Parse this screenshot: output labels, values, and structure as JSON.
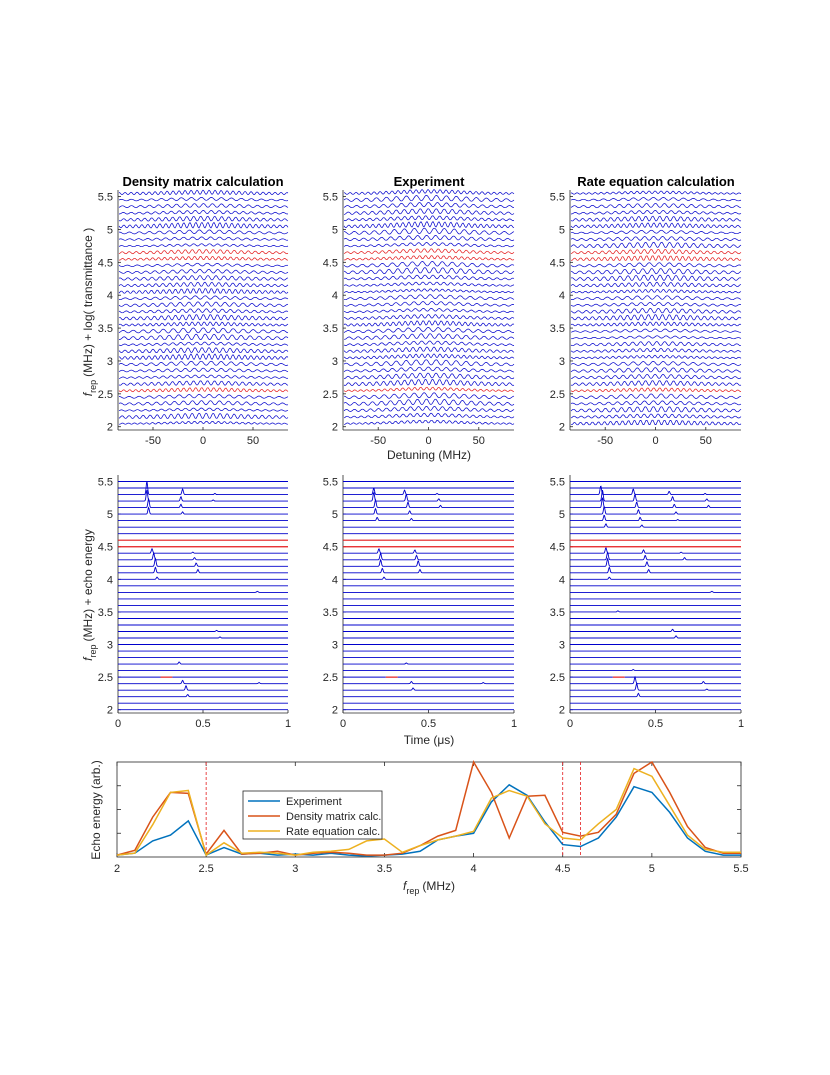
{
  "chart_data": [
    {
      "type": "line",
      "id": "density-spectra",
      "title": "Density matrix calculation",
      "xlabel": "",
      "ylabel_var": "f",
      "ylabel_sub": "rep",
      "ylabel_rest": "(MHz) + log( transmittance )",
      "xlim": [
        -85,
        85
      ],
      "ylim": [
        1.95,
        5.6
      ],
      "xticks": [
        -50,
        0,
        50
      ],
      "xtick_labels": [
        "-50",
        "0",
        "50"
      ],
      "yticks": [
        2,
        2.5,
        3,
        3.5,
        4,
        4.5,
        5,
        5.5
      ],
      "ytick_labels": [
        "2",
        "2.5",
        "3",
        "3.5",
        "4",
        "4.5",
        "5",
        "5.5"
      ],
      "frep_start": 2.0,
      "frep_step": 0.1,
      "n_traces": 36,
      "highlight_frep": [
        2.5,
        4.5,
        4.6
      ],
      "trace_color": "#0000cc",
      "highlight_color": "#e41a1c"
    },
    {
      "type": "line",
      "id": "experiment-spectra",
      "title": "Experiment",
      "xlabel": "Detuning (MHz)",
      "xlim": [
        -85,
        85
      ],
      "ylim": [
        1.95,
        5.6
      ],
      "xticks": [
        -50,
        0,
        50
      ],
      "xtick_labels": [
        "-50",
        "0",
        "50"
      ],
      "yticks": [
        2,
        2.5,
        3,
        3.5,
        4,
        4.5,
        5,
        5.5
      ],
      "ytick_labels": [
        "2",
        "2.5",
        "3",
        "3.5",
        "4",
        "4.5",
        "5",
        "5.5"
      ],
      "frep_start": 2.0,
      "frep_step": 0.1,
      "n_traces": 36,
      "highlight_frep": [
        2.5,
        4.5,
        4.6
      ],
      "trace_color": "#0000cc",
      "highlight_color": "#e41a1c"
    },
    {
      "type": "line",
      "id": "rate-spectra",
      "title": "Rate equation calculation",
      "xlabel": "",
      "xlim": [
        -85,
        85
      ],
      "ylim": [
        1.95,
        5.6
      ],
      "xticks": [
        -50,
        0,
        50
      ],
      "xtick_labels": [
        "-50",
        "0",
        "50"
      ],
      "yticks": [
        2,
        2.5,
        3,
        3.5,
        4,
        4.5,
        5,
        5.5
      ],
      "ytick_labels": [
        "2",
        "2.5",
        "3",
        "3.5",
        "4",
        "4.5",
        "5",
        "5.5"
      ],
      "frep_start": 2.0,
      "frep_step": 0.1,
      "n_traces": 36,
      "highlight_frep": [
        2.5,
        4.5,
        4.6
      ],
      "trace_color": "#0000cc",
      "highlight_color": "#e41a1c"
    },
    {
      "type": "line",
      "id": "density-echo",
      "xlabel": "",
      "ylabel_var": "f",
      "ylabel_sub": "rep",
      "ylabel_rest": "(MHz) + echo energy",
      "xlim": [
        0,
        1
      ],
      "ylim": [
        1.95,
        5.6
      ],
      "xticks": [
        0,
        0.5,
        1
      ],
      "xtick_labels": [
        "0",
        "0.5",
        "1"
      ],
      "yticks": [
        2,
        2.5,
        3,
        3.5,
        4,
        4.5,
        5,
        5.5
      ],
      "ytick_labels": [
        "2",
        "2.5",
        "3",
        "3.5",
        "4",
        "4.5",
        "5",
        "5.5"
      ],
      "frep_start": 2.0,
      "frep_step": 0.1,
      "n_traces": 36,
      "highlight_frep": [
        2.5,
        4.5,
        4.6
      ],
      "echo_peaks": [
        {
          "frep": 5.3,
          "times": [
            0.17,
            0.38,
            0.57
          ],
          "amps": [
            0.12,
            0.05,
            0.01
          ]
        },
        {
          "frep": 5.2,
          "times": [
            0.17,
            0.37,
            0.56
          ],
          "amps": [
            0.1,
            0.04,
            0.01
          ]
        },
        {
          "frep": 5.1,
          "times": [
            0.18,
            0.37
          ],
          "amps": [
            0.08,
            0.03
          ]
        },
        {
          "frep": 5.0,
          "times": [
            0.18,
            0.38
          ],
          "amps": [
            0.06,
            0.02
          ]
        },
        {
          "frep": 4.4,
          "times": [
            0.2,
            0.44
          ],
          "amps": [
            0.04,
            0.01
          ]
        },
        {
          "frep": 4.3,
          "times": [
            0.21,
            0.45
          ],
          "amps": [
            0.06,
            0.02
          ]
        },
        {
          "frep": 4.2,
          "times": [
            0.22,
            0.46
          ],
          "amps": [
            0.07,
            0.03
          ]
        },
        {
          "frep": 4.1,
          "times": [
            0.22,
            0.47
          ],
          "amps": [
            0.05,
            0.03
          ]
        },
        {
          "frep": 4.0,
          "times": [
            0.23
          ],
          "amps": [
            0.02
          ]
        },
        {
          "frep": 3.8,
          "times": [
            0.82
          ],
          "amps": [
            0.01
          ]
        },
        {
          "frep": 3.2,
          "times": [
            0.58
          ],
          "amps": [
            0.01
          ]
        },
        {
          "frep": 3.1,
          "times": [
            0.6
          ],
          "amps": [
            0.01
          ]
        },
        {
          "frep": 2.7,
          "times": [
            0.36
          ],
          "amps": [
            0.02
          ]
        },
        {
          "frep": 2.4,
          "times": [
            0.38,
            0.83
          ],
          "amps": [
            0.03,
            0.01
          ]
        },
        {
          "frep": 2.3,
          "times": [
            0.4
          ],
          "amps": [
            0.04
          ]
        },
        {
          "frep": 2.2,
          "times": [
            0.41
          ],
          "amps": [
            0.02
          ]
        }
      ]
    },
    {
      "type": "line",
      "id": "experiment-echo",
      "xlabel": "Time (μs)",
      "xlim": [
        0,
        1
      ],
      "ylim": [
        1.95,
        5.6
      ],
      "xticks": [
        0,
        0.5,
        1
      ],
      "xtick_labels": [
        "0",
        "0.5",
        "1"
      ],
      "yticks": [
        2,
        2.5,
        3,
        3.5,
        4,
        4.5,
        5,
        5.5
      ],
      "ytick_labels": [
        "2",
        "2.5",
        "3",
        "3.5",
        "4",
        "4.5",
        "5",
        "5.5"
      ],
      "frep_start": 2.0,
      "frep_step": 0.1,
      "n_traces": 36,
      "highlight_frep": [
        2.5,
        4.5,
        4.6
      ],
      "echo_peaks": [
        {
          "frep": 5.3,
          "times": [
            0.18,
            0.36,
            0.55
          ],
          "amps": [
            0.06,
            0.04,
            0.01
          ]
        },
        {
          "frep": 5.2,
          "times": [
            0.18,
            0.37,
            0.56
          ],
          "amps": [
            0.08,
            0.06,
            0.02
          ]
        },
        {
          "frep": 5.1,
          "times": [
            0.19,
            0.38,
            0.57
          ],
          "amps": [
            0.07,
            0.05,
            0.02
          ]
        },
        {
          "frep": 5.0,
          "times": [
            0.19,
            0.39
          ],
          "amps": [
            0.05,
            0.03
          ]
        },
        {
          "frep": 4.9,
          "times": [
            0.2,
            0.4
          ],
          "amps": [
            0.03,
            0.02
          ]
        },
        {
          "frep": 4.4,
          "times": [
            0.21,
            0.42
          ],
          "amps": [
            0.04,
            0.03
          ]
        },
        {
          "frep": 4.3,
          "times": [
            0.22,
            0.43
          ],
          "amps": [
            0.06,
            0.04
          ]
        },
        {
          "frep": 4.2,
          "times": [
            0.22,
            0.44
          ],
          "amps": [
            0.06,
            0.05
          ]
        },
        {
          "frep": 4.1,
          "times": [
            0.23,
            0.45
          ],
          "amps": [
            0.04,
            0.03
          ]
        },
        {
          "frep": 4.0,
          "times": [
            0.24
          ],
          "amps": [
            0.02
          ]
        },
        {
          "frep": 2.7,
          "times": [
            0.37
          ],
          "amps": [
            0.01
          ]
        },
        {
          "frep": 2.4,
          "times": [
            0.4,
            0.82
          ],
          "amps": [
            0.02,
            0.01
          ]
        },
        {
          "frep": 2.3,
          "times": [
            0.41
          ],
          "amps": [
            0.02
          ]
        }
      ]
    },
    {
      "type": "line",
      "id": "rate-echo",
      "xlabel": "",
      "xlim": [
        0,
        1
      ],
      "ylim": [
        1.95,
        5.6
      ],
      "xticks": [
        0,
        0.5,
        1
      ],
      "xtick_labels": [
        "0",
        "0.5",
        "1"
      ],
      "yticks": [
        2,
        2.5,
        3,
        3.5,
        4,
        4.5,
        5,
        5.5
      ],
      "ytick_labels": [
        "2",
        "2.5",
        "3",
        "3.5",
        "4",
        "4.5",
        "5",
        "5.5"
      ],
      "frep_start": 2.0,
      "frep_step": 0.1,
      "n_traces": 36,
      "highlight_frep": [
        2.5,
        4.5,
        4.6
      ],
      "echo_peaks": [
        {
          "frep": 5.3,
          "times": [
            0.18,
            0.37,
            0.58,
            0.79
          ],
          "amps": [
            0.08,
            0.05,
            0.03,
            0.01
          ]
        },
        {
          "frep": 5.2,
          "times": [
            0.19,
            0.38,
            0.6,
            0.8
          ],
          "amps": [
            0.1,
            0.06,
            0.04,
            0.02
          ]
        },
        {
          "frep": 5.1,
          "times": [
            0.19,
            0.39,
            0.61,
            0.81
          ],
          "amps": [
            0.09,
            0.05,
            0.03,
            0.02
          ]
        },
        {
          "frep": 5.0,
          "times": [
            0.2,
            0.4,
            0.62
          ],
          "amps": [
            0.07,
            0.04,
            0.02
          ]
        },
        {
          "frep": 4.9,
          "times": [
            0.2,
            0.41,
            0.63
          ],
          "amps": [
            0.05,
            0.03,
            0.01
          ]
        },
        {
          "frep": 4.8,
          "times": [
            0.21,
            0.42
          ],
          "amps": [
            0.03,
            0.02
          ]
        },
        {
          "frep": 4.4,
          "times": [
            0.21,
            0.43,
            0.65
          ],
          "amps": [
            0.05,
            0.03,
            0.01
          ]
        },
        {
          "frep": 4.3,
          "times": [
            0.22,
            0.44,
            0.67
          ],
          "amps": [
            0.07,
            0.04,
            0.02
          ]
        },
        {
          "frep": 4.2,
          "times": [
            0.22,
            0.45
          ],
          "amps": [
            0.07,
            0.04
          ]
        },
        {
          "frep": 4.1,
          "times": [
            0.23,
            0.46
          ],
          "amps": [
            0.05,
            0.03
          ]
        },
        {
          "frep": 4.0,
          "times": [
            0.23
          ],
          "amps": [
            0.02
          ]
        },
        {
          "frep": 3.8,
          "times": [
            0.83
          ],
          "amps": [
            0.01
          ]
        },
        {
          "frep": 3.5,
          "times": [
            0.28
          ],
          "amps": [
            0.01
          ]
        },
        {
          "frep": 3.2,
          "times": [
            0.6
          ],
          "amps": [
            0.02
          ]
        },
        {
          "frep": 3.1,
          "times": [
            0.62
          ],
          "amps": [
            0.02
          ]
        },
        {
          "frep": 2.6,
          "times": [
            0.37
          ],
          "amps": [
            0.01
          ]
        },
        {
          "frep": 2.4,
          "times": [
            0.38,
            0.78
          ],
          "amps": [
            0.06,
            0.02
          ]
        },
        {
          "frep": 2.3,
          "times": [
            0.39,
            0.8
          ],
          "amps": [
            0.06,
            0.01
          ]
        },
        {
          "frep": 2.2,
          "times": [
            0.4
          ],
          "amps": [
            0.03
          ]
        }
      ]
    },
    {
      "type": "line",
      "id": "echo-energy",
      "title": "",
      "xlabel_var": "f",
      "xlabel_sub": "rep",
      "xlabel_rest": "(MHz)",
      "ylabel": "Echo energy (arb.)",
      "xlim": [
        2,
        5.5
      ],
      "ylim": [
        0,
        1.0
      ],
      "xticks": [
        2,
        2.5,
        3,
        3.5,
        4,
        4.5,
        5,
        5.5
      ],
      "xtick_labels": [
        "2",
        "2.5",
        "3",
        "3.5",
        "4",
        "4.5",
        "5",
        "5.5"
      ],
      "vlines": [
        2.5,
        4.5,
        4.6
      ],
      "x": [
        2.0,
        2.1,
        2.2,
        2.3,
        2.4,
        2.5,
        2.6,
        2.7,
        2.8,
        2.9,
        3.0,
        3.1,
        3.2,
        3.3,
        3.4,
        3.5,
        3.6,
        3.7,
        3.8,
        3.9,
        4.0,
        4.1,
        4.2,
        4.3,
        4.4,
        4.5,
        4.6,
        4.7,
        4.8,
        4.9,
        5.0,
        5.1,
        5.2,
        5.3,
        5.4,
        5.5
      ],
      "series": [
        {
          "name": "Experiment",
          "color": "#0072BD",
          "values": [
            0.02,
            0.04,
            0.17,
            0.23,
            0.38,
            0.02,
            0.1,
            0.03,
            0.04,
            0.02,
            0.03,
            0.02,
            0.04,
            0.02,
            0.01,
            0.02,
            0.03,
            0.06,
            0.18,
            0.22,
            0.25,
            0.58,
            0.76,
            0.65,
            0.37,
            0.13,
            0.11,
            0.2,
            0.42,
            0.74,
            0.68,
            0.47,
            0.2,
            0.06,
            0.02,
            0.02
          ]
        },
        {
          "name": "Density matrix calc.",
          "color": "#D95319",
          "values": [
            0.02,
            0.07,
            0.42,
            0.68,
            0.67,
            0.03,
            0.28,
            0.03,
            0.04,
            0.06,
            0.02,
            0.04,
            0.05,
            0.04,
            0.02,
            0.02,
            0.04,
            0.12,
            0.22,
            0.28,
            1.02,
            0.68,
            0.2,
            0.64,
            0.65,
            0.26,
            0.22,
            0.26,
            0.45,
            0.88,
            1.02,
            0.68,
            0.32,
            0.1,
            0.04,
            0.04
          ]
        },
        {
          "name": "Rate equation calc.",
          "color": "#EDB120",
          "values": [
            0.02,
            0.04,
            0.34,
            0.68,
            0.7,
            0.02,
            0.15,
            0.04,
            0.05,
            0.04,
            0.02,
            0.05,
            0.06,
            0.08,
            0.17,
            0.19,
            0.05,
            0.12,
            0.18,
            0.22,
            0.27,
            0.62,
            0.7,
            0.64,
            0.35,
            0.2,
            0.18,
            0.35,
            0.5,
            0.93,
            0.85,
            0.54,
            0.23,
            0.08,
            0.05,
            0.05
          ]
        }
      ]
    }
  ]
}
